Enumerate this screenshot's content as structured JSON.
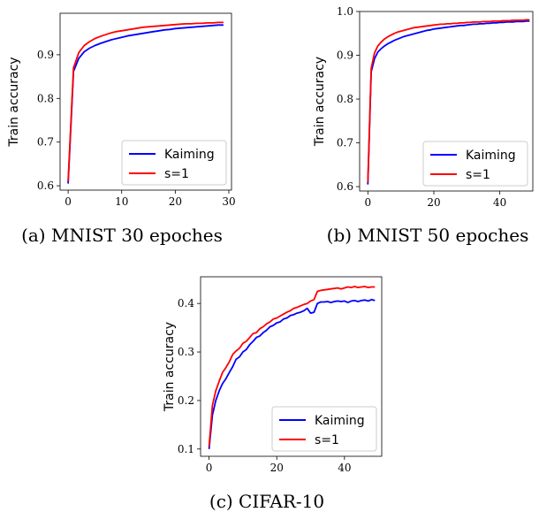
{
  "colors": {
    "kaiming": "#0000ff",
    "s1": "#ff0000"
  },
  "chart_data": [
    {
      "type": "line",
      "caption": "(a) MNIST 30 epoches",
      "ylabel": "Train accuracy",
      "xlim": [
        -1.5,
        30.5
      ],
      "ylim": [
        0.59,
        0.995
      ],
      "xticks": [
        0,
        10,
        20,
        30
      ],
      "yticks": [
        0.6,
        0.7,
        0.8,
        0.9
      ],
      "legend": "lower-right",
      "grid": false,
      "x": [
        0,
        1,
        2,
        3,
        4,
        5,
        6,
        7,
        8,
        9,
        10,
        11,
        12,
        13,
        14,
        15,
        16,
        17,
        18,
        19,
        20,
        21,
        22,
        23,
        24,
        25,
        26,
        27,
        28,
        29
      ],
      "series": [
        {
          "name": "Kaiming",
          "color": "#0000ff",
          "values": [
            0.605,
            0.862,
            0.892,
            0.907,
            0.915,
            0.921,
            0.926,
            0.93,
            0.934,
            0.937,
            0.94,
            0.943,
            0.945,
            0.947,
            0.949,
            0.951,
            0.953,
            0.955,
            0.957,
            0.958,
            0.96,
            0.961,
            0.962,
            0.963,
            0.964,
            0.965,
            0.966,
            0.967,
            0.968,
            0.968
          ]
        },
        {
          "name": "s=1",
          "color": "#ff0000",
          "values": [
            0.61,
            0.87,
            0.905,
            0.921,
            0.93,
            0.937,
            0.942,
            0.946,
            0.95,
            0.953,
            0.955,
            0.957,
            0.959,
            0.961,
            0.963,
            0.964,
            0.965,
            0.966,
            0.967,
            0.968,
            0.969,
            0.97,
            0.971,
            0.971,
            0.972,
            0.972,
            0.973,
            0.973,
            0.974,
            0.974
          ]
        }
      ]
    },
    {
      "type": "line",
      "caption": "(b) MNIST 50 epoches",
      "ylabel": "Train accuracy",
      "xlim": [
        -2.5,
        50
      ],
      "ylim": [
        0.59,
        1.0
      ],
      "xticks": [
        0,
        20,
        40
      ],
      "yticks": [
        0.6,
        0.7,
        0.8,
        0.9,
        1.0
      ],
      "legend": "lower-right",
      "grid": false,
      "x": [
        0,
        1,
        2,
        3,
        4,
        5,
        6,
        7,
        8,
        9,
        10,
        11,
        12,
        13,
        14,
        15,
        16,
        17,
        18,
        19,
        20,
        21,
        22,
        23,
        24,
        25,
        26,
        27,
        28,
        29,
        30,
        31,
        32,
        33,
        34,
        35,
        36,
        37,
        38,
        39,
        40,
        41,
        42,
        43,
        44,
        45,
        46,
        47,
        48,
        49
      ],
      "series": [
        {
          "name": "Kaiming",
          "color": "#0000ff",
          "values": [
            0.605,
            0.862,
            0.892,
            0.907,
            0.915,
            0.921,
            0.926,
            0.93,
            0.934,
            0.937,
            0.94,
            0.943,
            0.945,
            0.947,
            0.949,
            0.951,
            0.953,
            0.955,
            0.957,
            0.958,
            0.96,
            0.961,
            0.962,
            0.963,
            0.964,
            0.965,
            0.966,
            0.967,
            0.968,
            0.968,
            0.969,
            0.97,
            0.971,
            0.971,
            0.972,
            0.972,
            0.973,
            0.973,
            0.974,
            0.974,
            0.975,
            0.975,
            0.976,
            0.976,
            0.976,
            0.977,
            0.977,
            0.977,
            0.978,
            0.978
          ]
        },
        {
          "name": "s=1",
          "color": "#ff0000",
          "values": [
            0.61,
            0.87,
            0.905,
            0.921,
            0.93,
            0.937,
            0.942,
            0.946,
            0.95,
            0.953,
            0.955,
            0.957,
            0.959,
            0.961,
            0.963,
            0.964,
            0.965,
            0.966,
            0.967,
            0.968,
            0.969,
            0.97,
            0.971,
            0.971,
            0.972,
            0.972,
            0.973,
            0.973,
            0.974,
            0.974,
            0.975,
            0.975,
            0.976,
            0.976,
            0.976,
            0.977,
            0.977,
            0.977,
            0.978,
            0.978,
            0.978,
            0.979,
            0.979,
            0.979,
            0.98,
            0.98,
            0.98,
            0.98,
            0.981,
            0.981
          ]
        }
      ]
    },
    {
      "type": "line",
      "caption": "(c) CIFAR-10",
      "ylabel": "Train accuracy",
      "xlim": [
        -2.5,
        51
      ],
      "ylim": [
        0.085,
        0.455
      ],
      "xticks": [
        0,
        20,
        40
      ],
      "yticks": [
        0.1,
        0.2,
        0.3,
        0.4
      ],
      "legend": "lower-right",
      "grid": false,
      "x": [
        0,
        1,
        2,
        3,
        4,
        5,
        6,
        7,
        8,
        9,
        10,
        11,
        12,
        13,
        14,
        15,
        16,
        17,
        18,
        19,
        20,
        21,
        22,
        23,
        24,
        25,
        26,
        27,
        28,
        29,
        30,
        31,
        32,
        33,
        34,
        35,
        36,
        37,
        38,
        39,
        40,
        41,
        42,
        43,
        44,
        45,
        46,
        47,
        48,
        49
      ],
      "series": [
        {
          "name": "Kaiming",
          "color": "#0000ff",
          "values": [
            0.1,
            0.17,
            0.2,
            0.22,
            0.235,
            0.245,
            0.258,
            0.27,
            0.285,
            0.29,
            0.3,
            0.305,
            0.315,
            0.322,
            0.33,
            0.333,
            0.34,
            0.345,
            0.352,
            0.355,
            0.36,
            0.362,
            0.368,
            0.37,
            0.375,
            0.377,
            0.38,
            0.382,
            0.385,
            0.39,
            0.38,
            0.382,
            0.4,
            0.403,
            0.403,
            0.404,
            0.402,
            0.404,
            0.405,
            0.404,
            0.405,
            0.402,
            0.405,
            0.406,
            0.404,
            0.406,
            0.407,
            0.405,
            0.408,
            0.406
          ]
        },
        {
          "name": "s=1",
          "color": "#ff0000",
          "values": [
            0.105,
            0.19,
            0.22,
            0.24,
            0.258,
            0.268,
            0.28,
            0.295,
            0.302,
            0.308,
            0.318,
            0.322,
            0.33,
            0.338,
            0.34,
            0.348,
            0.352,
            0.358,
            0.362,
            0.368,
            0.37,
            0.374,
            0.378,
            0.382,
            0.385,
            0.39,
            0.392,
            0.395,
            0.398,
            0.4,
            0.405,
            0.408,
            0.425,
            0.427,
            0.428,
            0.429,
            0.43,
            0.431,
            0.432,
            0.43,
            0.432,
            0.434,
            0.433,
            0.435,
            0.433,
            0.434,
            0.435,
            0.433,
            0.434,
            0.434
          ]
        }
      ]
    }
  ]
}
